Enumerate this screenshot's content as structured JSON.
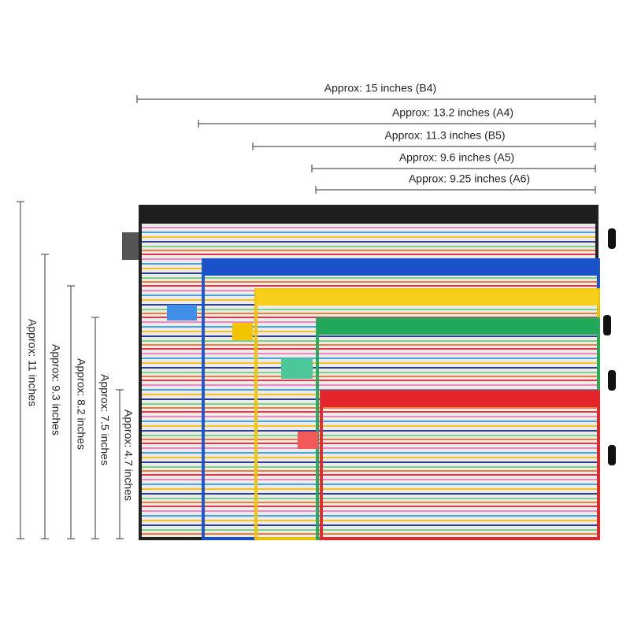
{
  "widths": [
    "Approx: 15 inches (B4)",
    "Approx: 13.2 inches (A4)",
    "Approx: 11.3 inches (B5)",
    "Approx: 9.6 inches (A5)",
    "Approx: 9.25 inches (A6)"
  ],
  "heights": [
    "Approx: 11 inches",
    "Approx: 9.3 inches",
    "Approx: 8.2 inches",
    "Approx: 7.5 inches",
    "Approx: 4.7 inches"
  ]
}
